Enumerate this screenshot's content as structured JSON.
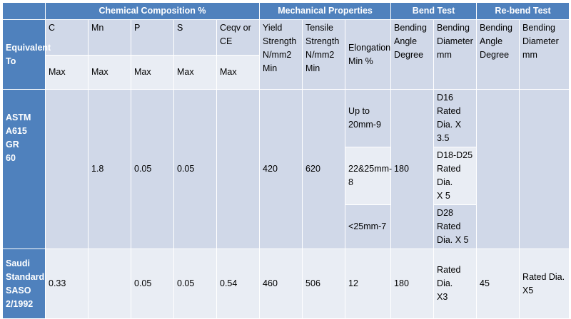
{
  "groups": {
    "chemical": "Chemical Composition %",
    "mechanical": "Mechanical Properties",
    "bend": "Bend Test",
    "rebend": "Re-bend Test"
  },
  "equivalent_label": "Equivalent\nTo",
  "chem_elements": [
    "C",
    "Mn",
    "P",
    "S",
    "Ceqv or\nCE"
  ],
  "chem_limits": [
    "Max",
    "Max",
    "Max",
    "Max",
    "Max"
  ],
  "mech_headers": {
    "yield": "Yield\nStrength\nN/mm2\nMin",
    "tensile": "Tensile\nStrength\nN/mm2\nMin",
    "elongation": "Elongation\nMin %"
  },
  "bend_headers": {
    "angle": "Bending\nAngle\nDegree",
    "diameter": "Bending\nDiameter\nmm"
  },
  "rebend_headers": {
    "angle": "Bending\nAngle\nDegree",
    "diameter": "Bending\nDiameter\nmm"
  },
  "astm": {
    "name": "ASTM\nA615 GR\n60",
    "c": "",
    "mn": "1.8",
    "p": "0.05",
    "s": "0.05",
    "ceqv": "",
    "yield": "420",
    "tensile": "620",
    "elongation": [
      "Up to\n20mm-9",
      "22&25mm-\n8",
      "<25mm-7"
    ],
    "bend_angle": "180",
    "bend_diameter": [
      "D16 Rated\nDia. X 3.5",
      "D18-D25\nRated Dia.\nX 5",
      "D28 Rated\nDia. X 5"
    ],
    "rebend_angle": "",
    "rebend_diameter": ""
  },
  "saso": {
    "name": "Saudi\nStandard\nSASO\n2/1992",
    "c": "0.33",
    "mn": "",
    "p": "0.05",
    "s": "0.05",
    "ceqv": "0.54",
    "yield": "460",
    "tensile": "506",
    "elongation": "12",
    "bend_angle": "180",
    "bend_diameter": "Rated Dia.\nX3",
    "rebend_angle": "45",
    "rebend_diameter": "Rated Dia.\nX5"
  },
  "colors": {
    "header_blue": "#4f81bd",
    "band_dark": "#d0d8e8",
    "band_light": "#e9edf4"
  }
}
